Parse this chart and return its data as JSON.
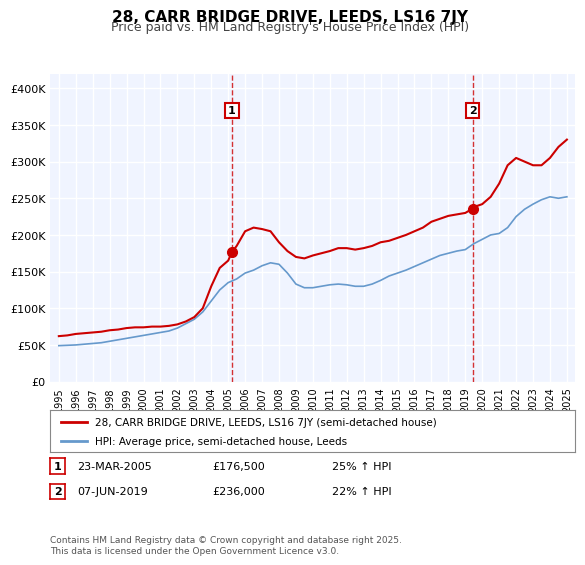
{
  "title": "28, CARR BRIDGE DRIVE, LEEDS, LS16 7JY",
  "subtitle": "Price paid vs. HM Land Registry's House Price Index (HPI)",
  "bg_color": "#ffffff",
  "plot_bg_color": "#f0f4ff",
  "grid_color": "#ffffff",
  "red_line_color": "#cc0000",
  "blue_line_color": "#6699cc",
  "marker1_x": 2005.22,
  "marker1_y": 176500,
  "marker2_x": 2019.44,
  "marker2_y": 236000,
  "vline_color": "#cc0000",
  "ylim": [
    0,
    420000
  ],
  "xlim": [
    1994.5,
    2025.5
  ],
  "yticks": [
    0,
    50000,
    100000,
    150000,
    200000,
    250000,
    300000,
    350000,
    400000
  ],
  "ytick_labels": [
    "£0",
    "£50K",
    "£100K",
    "£150K",
    "£200K",
    "£250K",
    "£300K",
    "£350K",
    "£400K"
  ],
  "xticks": [
    1995,
    1996,
    1997,
    1998,
    1999,
    2000,
    2001,
    2002,
    2003,
    2004,
    2005,
    2006,
    2007,
    2008,
    2009,
    2010,
    2011,
    2012,
    2013,
    2014,
    2015,
    2016,
    2017,
    2018,
    2019,
    2020,
    2021,
    2022,
    2023,
    2024,
    2025
  ],
  "legend_label_red": "28, CARR BRIDGE DRIVE, LEEDS, LS16 7JY (semi-detached house)",
  "legend_label_blue": "HPI: Average price, semi-detached house, Leeds",
  "footnote": "Contains HM Land Registry data © Crown copyright and database right 2025.\nThis data is licensed under the Open Government Licence v3.0.",
  "table_rows": [
    {
      "num": "1",
      "date": "23-MAR-2005",
      "price": "£176,500",
      "hpi": "25% ↑ HPI"
    },
    {
      "num": "2",
      "date": "07-JUN-2019",
      "price": "£236,000",
      "hpi": "22% ↑ HPI"
    }
  ],
  "red_data": {
    "x": [
      1995.0,
      1995.5,
      1996.0,
      1996.5,
      1997.0,
      1997.5,
      1998.0,
      1998.5,
      1999.0,
      1999.5,
      2000.0,
      2000.5,
      2001.0,
      2001.5,
      2002.0,
      2002.5,
      2003.0,
      2003.5,
      2004.0,
      2004.5,
      2005.0,
      2005.22,
      2005.5,
      2006.0,
      2006.5,
      2007.0,
      2007.5,
      2008.0,
      2008.5,
      2009.0,
      2009.5,
      2010.0,
      2010.5,
      2011.0,
      2011.5,
      2012.0,
      2012.5,
      2013.0,
      2013.5,
      2014.0,
      2014.5,
      2015.0,
      2015.5,
      2016.0,
      2016.5,
      2017.0,
      2017.5,
      2018.0,
      2018.5,
      2019.0,
      2019.44,
      2019.5,
      2020.0,
      2020.5,
      2021.0,
      2021.5,
      2022.0,
      2022.5,
      2023.0,
      2023.5,
      2024.0,
      2024.5,
      2025.0
    ],
    "y": [
      62000,
      63000,
      65000,
      66000,
      67000,
      68000,
      70000,
      71000,
      73000,
      74000,
      74000,
      75000,
      75000,
      76000,
      78000,
      82000,
      88000,
      100000,
      130000,
      155000,
      165000,
      176500,
      185000,
      205000,
      210000,
      208000,
      205000,
      190000,
      178000,
      170000,
      168000,
      172000,
      175000,
      178000,
      182000,
      182000,
      180000,
      182000,
      185000,
      190000,
      192000,
      196000,
      200000,
      205000,
      210000,
      218000,
      222000,
      226000,
      228000,
      230000,
      236000,
      238000,
      242000,
      252000,
      270000,
      295000,
      305000,
      300000,
      295000,
      295000,
      305000,
      320000,
      330000
    ]
  },
  "blue_data": {
    "x": [
      1995.0,
      1995.5,
      1996.0,
      1996.5,
      1997.0,
      1997.5,
      1998.0,
      1998.5,
      1999.0,
      1999.5,
      2000.0,
      2000.5,
      2001.0,
      2001.5,
      2002.0,
      2002.5,
      2003.0,
      2003.5,
      2004.0,
      2004.5,
      2005.0,
      2005.5,
      2006.0,
      2006.5,
      2007.0,
      2007.5,
      2008.0,
      2008.5,
      2009.0,
      2009.5,
      2010.0,
      2010.5,
      2011.0,
      2011.5,
      2012.0,
      2012.5,
      2013.0,
      2013.5,
      2014.0,
      2014.5,
      2015.0,
      2015.5,
      2016.0,
      2016.5,
      2017.0,
      2017.5,
      2018.0,
      2018.5,
      2019.0,
      2019.5,
      2020.0,
      2020.5,
      2021.0,
      2021.5,
      2022.0,
      2022.5,
      2023.0,
      2023.5,
      2024.0,
      2024.5,
      2025.0
    ],
    "y": [
      49000,
      49500,
      50000,
      51000,
      52000,
      53000,
      55000,
      57000,
      59000,
      61000,
      63000,
      65000,
      67000,
      69000,
      73000,
      79000,
      85000,
      95000,
      110000,
      125000,
      135000,
      140000,
      148000,
      152000,
      158000,
      162000,
      160000,
      148000,
      133000,
      128000,
      128000,
      130000,
      132000,
      133000,
      132000,
      130000,
      130000,
      133000,
      138000,
      144000,
      148000,
      152000,
      157000,
      162000,
      167000,
      172000,
      175000,
      178000,
      180000,
      188000,
      194000,
      200000,
      202000,
      210000,
      225000,
      235000,
      242000,
      248000,
      252000,
      250000,
      252000
    ]
  }
}
